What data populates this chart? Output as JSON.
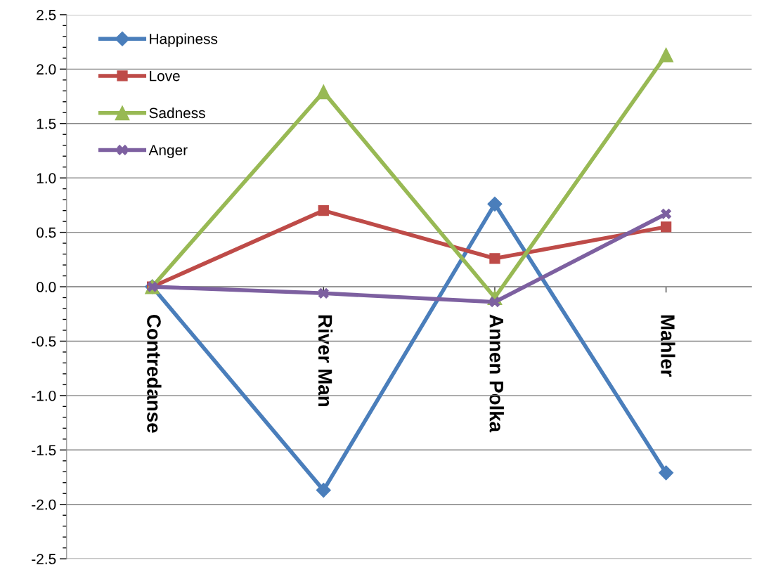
{
  "chart_data": {
    "type": "line",
    "categories": [
      "Contredanse",
      "River Man",
      "Annen Polka",
      "Mahler"
    ],
    "series": [
      {
        "name": "Happiness",
        "color": "#4a7ebb",
        "marker": "diamond",
        "values": [
          0,
          -1.87,
          0.76,
          -1.71
        ]
      },
      {
        "name": "Love",
        "color": "#be4b48",
        "marker": "square",
        "values": [
          0,
          0.7,
          0.26,
          0.55
        ]
      },
      {
        "name": "Sadness",
        "color": "#98b954",
        "marker": "triangle",
        "values": [
          0,
          1.79,
          -0.1,
          2.13
        ]
      },
      {
        "name": "Anger",
        "color": "#7d60a0",
        "marker": "cross",
        "values": [
          0,
          -0.06,
          -0.14,
          0.67
        ]
      }
    ],
    "ylim": [
      -2.5,
      2.5
    ],
    "yticks": [
      {
        "value": -2.5,
        "label": "-2.5"
      },
      {
        "value": -2.0,
        "label": "-2.0"
      },
      {
        "value": -1.5,
        "label": "-1.5"
      },
      {
        "value": -1.0,
        "label": "-1.0"
      },
      {
        "value": -0.5,
        "label": "-0.5"
      },
      {
        "value": 0.0,
        "label": "0.0"
      },
      {
        "value": 0.5,
        "label": "0.5"
      },
      {
        "value": 1.0,
        "label": "1.0"
      },
      {
        "value": 1.5,
        "label": "1.5"
      },
      {
        "value": 2.0,
        "label": "2.0"
      },
      {
        "value": 2.5,
        "label": "2.5"
      }
    ],
    "grid": "y",
    "legend": "top left",
    "line_style": "solid"
  }
}
